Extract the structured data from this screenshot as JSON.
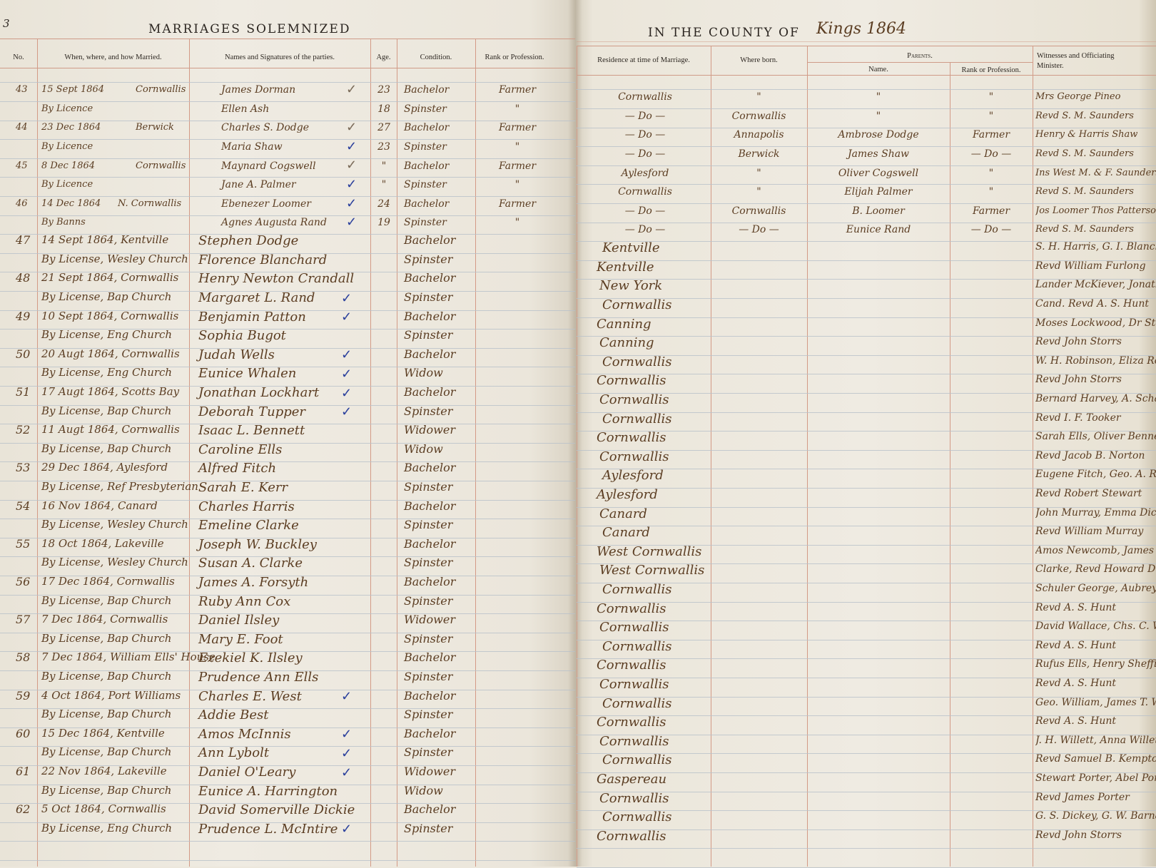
{
  "left_page": {
    "page_number": "3",
    "title": "MARRIAGES SOLEMNIZED",
    "headers": {
      "no": "No.",
      "when": "When, where, and how Married.",
      "names": "Names and Signatures of the parties.",
      "age": "Age.",
      "condition": "Condition.",
      "rank": "Rank or Profession."
    },
    "rows": [
      {
        "no": "43",
        "when": "15 Sept 1864",
        "where": "Cornwallis",
        "name": "James Dorman",
        "check": "brown",
        "age": "23",
        "condition": "Bachelor",
        "rank": "Farmer"
      },
      {
        "no": "",
        "when": "By Licence",
        "where": "",
        "name": "Ellen Ash",
        "check": "",
        "age": "18",
        "condition": "Spinster",
        "rank": "\""
      },
      {
        "no": "44",
        "when": "23 Dec 1864",
        "where": "Berwick",
        "name": "Charles S. Dodge",
        "check": "brown",
        "age": "27",
        "condition": "Bachelor",
        "rank": "Farmer"
      },
      {
        "no": "",
        "when": "By Licence",
        "where": "",
        "name": "Maria Shaw",
        "check": "blue",
        "age": "23",
        "condition": "Spinster",
        "rank": "\""
      },
      {
        "no": "45",
        "when": "8 Dec 1864",
        "where": "Cornwallis",
        "name": "Maynard Cogswell",
        "check": "brown",
        "age": "\"",
        "condition": "Bachelor",
        "rank": "Farmer"
      },
      {
        "no": "",
        "when": "By Licence",
        "where": "",
        "name": "Jane A. Palmer",
        "check": "blue",
        "age": "\"",
        "condition": "Spinster",
        "rank": "\""
      },
      {
        "no": "46",
        "when": "14 Dec 1864",
        "where": "N. Cornwallis",
        "name": "Ebenezer Loomer",
        "check": "blue",
        "age": "24",
        "condition": "Bachelor",
        "rank": "Farmer"
      },
      {
        "no": "",
        "when": "By Banns",
        "where": "",
        "name": "Agnes Augusta Rand",
        "check": "blue",
        "age": "19",
        "condition": "Spinster",
        "rank": "\""
      },
      {
        "no": "47",
        "when": "14 Sept 1864, Kentville",
        "name": "Stephen Dodge",
        "check": "",
        "condition": "Bachelor"
      },
      {
        "no": "",
        "when": "By License, Wesley Church",
        "name": "Florence Blanchard",
        "check": "",
        "condition": "Spinster"
      },
      {
        "no": "48",
        "when": "21 Sept 1864, Cornwallis",
        "name": "Henry Newton Crandall",
        "check": "",
        "condition": "Bachelor"
      },
      {
        "no": "",
        "when": "By License, Bap Church",
        "name": "Margaret L. Rand",
        "check": "blue",
        "condition": "Spinster"
      },
      {
        "no": "49",
        "when": "10 Sept 1864, Cornwallis",
        "name": "Benjamin Patton",
        "check": "blue",
        "condition": "Bachelor"
      },
      {
        "no": "",
        "when": "By License, Eng Church",
        "name": "Sophia Bugot",
        "check": "",
        "condition": "Spinster"
      },
      {
        "no": "50",
        "when": "20 Augt 1864, Cornwallis",
        "name": "Judah Wells",
        "check": "blue",
        "condition": "Bachelor"
      },
      {
        "no": "",
        "when": "By License, Eng Church",
        "name": "Eunice Whalen",
        "check": "blue",
        "condition": "Widow"
      },
      {
        "no": "51",
        "when": "17 Augt 1864, Scotts Bay",
        "name": "Jonathan Lockhart",
        "check": "blue",
        "condition": "Bachelor"
      },
      {
        "no": "",
        "when": "By License, Bap Church",
        "name": "Deborah Tupper",
        "check": "blue",
        "condition": "Spinster"
      },
      {
        "no": "52",
        "when": "11 Augt 1864, Cornwallis",
        "name": "Isaac L. Bennett",
        "check": "",
        "condition": "Widower"
      },
      {
        "no": "",
        "when": "By License, Bap Church",
        "name": "Caroline Ells",
        "check": "",
        "condition": "Widow"
      },
      {
        "no": "53",
        "when": "29 Dec 1864, Aylesford",
        "name": "Alfred Fitch",
        "check": "",
        "condition": "Bachelor"
      },
      {
        "no": "",
        "when": "By License, Ref Presbyterian",
        "name": "Sarah E. Kerr",
        "check": "",
        "condition": "Spinster"
      },
      {
        "no": "54",
        "when": "16 Nov 1864, Canard",
        "name": "Charles Harris",
        "check": "",
        "condition": "Bachelor"
      },
      {
        "no": "",
        "when": "By License, Wesley Church",
        "name": "Emeline Clarke",
        "check": "",
        "condition": "Spinster"
      },
      {
        "no": "55",
        "when": "18 Oct 1864, Lakeville",
        "name": "Joseph W. Buckley",
        "check": "",
        "condition": "Bachelor"
      },
      {
        "no": "",
        "when": "By License, Wesley Church",
        "name": "Susan A. Clarke",
        "check": "",
        "condition": "Spinster"
      },
      {
        "no": "56",
        "when": "17 Dec 1864, Cornwallis",
        "name": "James A. Forsyth",
        "check": "",
        "condition": "Bachelor"
      },
      {
        "no": "",
        "when": "By License, Bap Church",
        "name": "Ruby Ann Cox",
        "check": "",
        "condition": "Spinster"
      },
      {
        "no": "57",
        "when": "7 Dec 1864, Cornwallis",
        "name": "Daniel Ilsley",
        "check": "",
        "condition": "Widower"
      },
      {
        "no": "",
        "when": "By License, Bap Church",
        "name": "Mary E. Foot",
        "check": "",
        "condition": "Spinster"
      },
      {
        "no": "58",
        "when": "7 Dec 1864, William Ells' House",
        "name": "Ezekiel K. Ilsley",
        "check": "",
        "condition": "Bachelor"
      },
      {
        "no": "",
        "when": "By License, Bap Church",
        "name": "Prudence Ann Ells",
        "check": "",
        "condition": "Spinster"
      },
      {
        "no": "59",
        "when": "4 Oct 1864, Port Williams",
        "name": "Charles E. West",
        "check": "blue",
        "condition": "Bachelor"
      },
      {
        "no": "",
        "when": "By License, Bap Church",
        "name": "Addie Best",
        "check": "",
        "condition": "Spinster"
      },
      {
        "no": "60",
        "when": "15 Dec 1864, Kentville",
        "name": "Amos McInnis",
        "check": "blue",
        "condition": "Bachelor"
      },
      {
        "no": "",
        "when": "By License, Bap Church",
        "name": "Ann Lybolt",
        "check": "blue",
        "condition": "Spinster"
      },
      {
        "no": "61",
        "when": "22 Nov 1864, Lakeville",
        "name": "Daniel O'Leary",
        "check": "blue",
        "condition": "Widower"
      },
      {
        "no": "",
        "when": "By License, Bap Church",
        "name": "Eunice A. Harrington",
        "check": "",
        "condition": "Widow"
      },
      {
        "no": "62",
        "when": "5 Oct 1864, Cornwallis",
        "name": "David Somerville Dickie",
        "check": "",
        "condition": "Bachelor"
      },
      {
        "no": "",
        "when": "By License, Eng Church",
        "name": "Prudence L. McIntire",
        "check": "blue",
        "condition": "Spinster"
      }
    ]
  },
  "right_page": {
    "title": "IN THE COUNTY OF",
    "county_handwritten": "Kings 1864",
    "headers": {
      "residence": "Residence at time of Marriage.",
      "born": "Where born.",
      "parents": "Parents.",
      "parent_name": "Name.",
      "parent_rank": "Rank or Profession.",
      "witnesses": "Witnesses and Officiating Minister."
    },
    "rows": [
      {
        "residence": "Cornwallis",
        "born": "\"",
        "parent_name": "\"",
        "parent_rank": "\"",
        "witness": "Mrs George Pineo"
      },
      {
        "residence": "— Do —",
        "born": "Cornwallis",
        "parent_name": "\"",
        "parent_rank": "\"",
        "witness": "Revd S. M. Saunders"
      },
      {
        "residence": "— Do —",
        "born": "Annapolis",
        "parent_name": "Ambrose Dodge",
        "parent_rank": "Farmer",
        "witness": "Henry & Harris Shaw"
      },
      {
        "residence": "— Do —",
        "born": "Berwick",
        "parent_name": "James Shaw",
        "parent_rank": "— Do —",
        "witness": "Revd S. M. Saunders"
      },
      {
        "residence": "Aylesford",
        "born": "\"",
        "parent_name": "Oliver Cogswell",
        "parent_rank": "\"",
        "witness": "Ins West M. & F. Saunders"
      },
      {
        "residence": "Cornwallis",
        "born": "\"",
        "parent_name": "Elijah Palmer",
        "parent_rank": "\"",
        "witness": "Revd S. M. Saunders"
      },
      {
        "residence": "— Do —",
        "born": "Cornwallis",
        "parent_name": "B. Loomer",
        "parent_rank": "Farmer",
        "witness": "Jos Loomer Thos Patterson"
      },
      {
        "residence": "— Do —",
        "born": "— Do —",
        "parent_name": "Eunice Rand",
        "parent_rank": "— Do —",
        "witness": "Revd S. M. Saunders"
      },
      {
        "residence": "Kentville",
        "witness": "S. H. Harris, G. I. Blanchard"
      },
      {
        "residence": "Kentville",
        "witness": "Revd William Furlong"
      },
      {
        "residence": "New York",
        "witness": "Lander McKiever, Jonathan"
      },
      {
        "residence": "Cornwallis",
        "witness": "Cand. Revd A. S. Hunt"
      },
      {
        "residence": "Canning",
        "witness": "Moses Lockwood, Dr Stewart"
      },
      {
        "residence": "Canning",
        "witness": "Revd John Storrs"
      },
      {
        "residence": "Cornwallis",
        "witness": "W. H. Robinson, Eliza Robinson"
      },
      {
        "residence": "Cornwallis",
        "witness": "Revd John Storrs"
      },
      {
        "residence": "Cornwallis",
        "witness": "Bernard Harvey, A. Schaffer"
      },
      {
        "residence": "Cornwallis",
        "witness": "Revd I. F. Tooker"
      },
      {
        "residence": "Cornwallis",
        "witness": "Sarah Ells, Oliver Bennett"
      },
      {
        "residence": "Cornwallis",
        "witness": "Revd Jacob B. Norton"
      },
      {
        "residence": "Aylesford",
        "witness": "Eugene Fitch, Geo. A. Reed"
      },
      {
        "residence": "Aylesford",
        "witness": "Revd Robert Stewart"
      },
      {
        "residence": "Canard",
        "witness": "John Murray, Emma Dickie"
      },
      {
        "residence": "Canard",
        "witness": "Revd William Murray"
      },
      {
        "residence": "West Cornwallis",
        "witness": "Amos Newcomb, James"
      },
      {
        "residence": "West Cornwallis",
        "witness": "Clarke, Revd Howard D. Steele"
      },
      {
        "residence": "Cornwallis",
        "witness": "Schuler George, Aubrey Hunt"
      },
      {
        "residence": "Cornwallis",
        "witness": "Revd A. S. Hunt"
      },
      {
        "residence": "Cornwallis",
        "witness": "David Wallace, Chs. C. Wallace"
      },
      {
        "residence": "Cornwallis",
        "witness": "Revd A. S. Hunt"
      },
      {
        "residence": "Cornwallis",
        "witness": "Rufus Ells, Henry Sheffield"
      },
      {
        "residence": "Cornwallis",
        "witness": "Revd A. S. Hunt"
      },
      {
        "residence": "Cornwallis",
        "witness": "Geo. William, James T. West"
      },
      {
        "residence": "Cornwallis",
        "witness": "Revd A. S. Hunt"
      },
      {
        "residence": "Cornwallis",
        "witness": "J. H. Willett, Anna Willett"
      },
      {
        "residence": "Cornwallis",
        "witness": "Revd Samuel B. Kempton"
      },
      {
        "residence": "Gaspereau",
        "witness": "Stewart Porter, Abel Porter"
      },
      {
        "residence": "Cornwallis",
        "witness": "Revd James Porter"
      },
      {
        "residence": "Cornwallis",
        "witness": "G. S. Dickey, G. W. Barnaby"
      },
      {
        "residence": "Cornwallis",
        "witness": "Revd John Storrs"
      }
    ]
  },
  "colors": {
    "ink": "#5b3d22",
    "check_ink": "#2a3f9c",
    "rule_red": "#d39a86",
    "rule_blue": "#b8c1c9",
    "paper": "#efebe2"
  }
}
